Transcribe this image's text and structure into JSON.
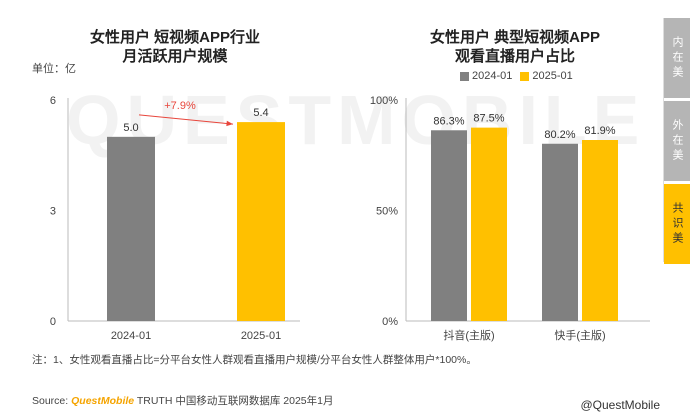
{
  "chart_data": [
    {
      "type": "bar",
      "title": "女性用户 短视频APP行业\n月活跃用户规模",
      "unit_label": "单位：亿",
      "categories": [
        "2024-01",
        "2025-01"
      ],
      "values": [
        5.0,
        5.4
      ],
      "value_labels": [
        "5.0",
        "5.4"
      ],
      "colors": [
        "#808080",
        "#ffc000"
      ],
      "ylim": [
        0,
        6
      ],
      "yticks": [
        "6",
        "3",
        "0"
      ],
      "annotation": "+7.9%",
      "grid": false
    },
    {
      "type": "bar",
      "title": "女性用户 典型短视频APP\n观看直播用户占比",
      "categories": [
        "抖音(主版)",
        "快手(主版)"
      ],
      "series": [
        {
          "name": "2024-01",
          "values": [
            86.3,
            80.2
          ],
          "labels": [
            "86.3%",
            "80.2%"
          ],
          "color": "#808080"
        },
        {
          "name": "2025-01",
          "values": [
            87.5,
            81.9
          ],
          "labels": [
            "87.5%",
            "81.9%"
          ],
          "color": "#ffc000"
        }
      ],
      "ylim": [
        0,
        100
      ],
      "yticks": [
        "100%",
        "50%",
        "0%"
      ],
      "legend_position": "top",
      "grid": false
    }
  ],
  "footnote": "注：1、女性观看直播占比=分平台女性人群观看直播用户规模/分平台女性人群整体用户*100%。",
  "source": {
    "prefix": "Source: ",
    "brand": "QuestMobile",
    "rest": " TRUTH 中国移动互联网数据库 2025年1月"
  },
  "watermark": "QUESTMOBILE",
  "credit": "@QuestMobile",
  "tabs": [
    "内在美",
    "外在美",
    "共识美"
  ],
  "active_tab": 2
}
